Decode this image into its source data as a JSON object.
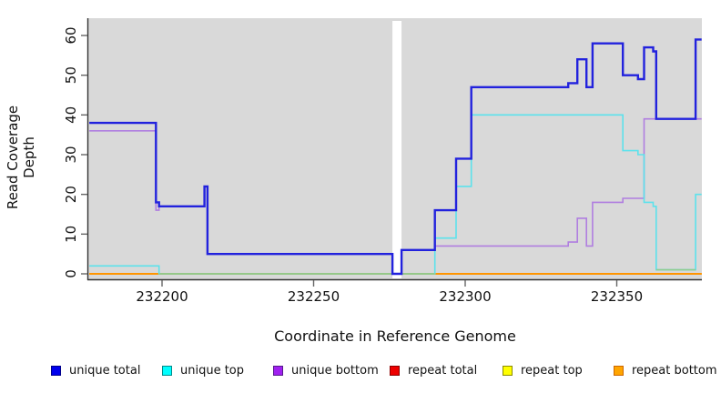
{
  "axes": {
    "x": {
      "label": "Coordinate in Reference Genome",
      "ticks": [
        232200,
        232250,
        232300,
        232350
      ],
      "range": [
        232176,
        232378
      ]
    },
    "y": {
      "label": "Read Coverage Depth",
      "ticks": [
        0,
        10,
        20,
        30,
        40,
        50,
        60
      ],
      "range": [
        0,
        62
      ]
    }
  },
  "chart_data": {
    "type": "line",
    "interpolation": "step-after",
    "title": "",
    "xlabel": "Coordinate in Reference Genome",
    "ylabel": "Read Coverage Depth",
    "xlim": [
      232176,
      232378
    ],
    "ylim": [
      0,
      62
    ],
    "grid": false,
    "plot_bg": "#d9d9d9",
    "gap_band": {
      "x0": 232276,
      "x1": 232279,
      "color": "#ffffff"
    },
    "series": [
      {
        "name": "repeat total",
        "color": "#ee0000",
        "width": 2,
        "points": [
          [
            232176,
            0
          ],
          [
            232378,
            0
          ]
        ]
      },
      {
        "name": "repeat top",
        "color": "#ffff00",
        "width": 2,
        "points": [
          [
            232176,
            0
          ],
          [
            232378,
            0
          ]
        ]
      },
      {
        "name": "repeat bottom",
        "color": "#ff9500",
        "width": 2,
        "points": [
          [
            232176,
            0
          ],
          [
            232378,
            0
          ]
        ]
      },
      {
        "name": "unique bottom",
        "color": "#b07ee0",
        "width": 1.6,
        "points": [
          [
            232176,
            36
          ],
          [
            232198,
            16
          ],
          [
            232199,
            17
          ],
          [
            232214,
            22
          ],
          [
            232215,
            5
          ],
          [
            232276,
            0
          ],
          [
            232279,
            6
          ],
          [
            232290,
            7
          ],
          [
            232334,
            8
          ],
          [
            232337,
            14
          ],
          [
            232340,
            7
          ],
          [
            232342,
            18
          ],
          [
            232352,
            19
          ],
          [
            232359,
            39
          ],
          [
            232378,
            39
          ]
        ]
      },
      {
        "name": "unique top",
        "color": "#5ce2ec",
        "width": 1.6,
        "points": [
          [
            232176,
            2
          ],
          [
            232199,
            0
          ],
          [
            232290,
            9
          ],
          [
            232297,
            22
          ],
          [
            232302,
            40
          ],
          [
            232352,
            31
          ],
          [
            232357,
            30
          ],
          [
            232359,
            18
          ],
          [
            232362,
            17
          ],
          [
            232363,
            1
          ],
          [
            232376,
            20
          ],
          [
            232378,
            20
          ]
        ]
      },
      {
        "name": "overlap",
        "color": "#8fcc8f",
        "width": 1.6,
        "segments": [
          [
            [
              232199,
              0
            ],
            [
              232290,
              0
            ]
          ],
          [
            [
              232363,
              1
            ],
            [
              232376,
              1
            ]
          ]
        ]
      },
      {
        "name": "unique total",
        "color": "#2222dd",
        "width": 2.4,
        "points": [
          [
            232176,
            38
          ],
          [
            232198,
            18
          ],
          [
            232199,
            17
          ],
          [
            232214,
            22
          ],
          [
            232215,
            5
          ],
          [
            232276,
            0
          ],
          [
            232279,
            6
          ],
          [
            232290,
            16
          ],
          [
            232297,
            29
          ],
          [
            232302,
            47
          ],
          [
            232334,
            48
          ],
          [
            232337,
            54
          ],
          [
            232340,
            47
          ],
          [
            232342,
            58
          ],
          [
            232352,
            50
          ],
          [
            232357,
            49
          ],
          [
            232359,
            57
          ],
          [
            232362,
            56
          ],
          [
            232363,
            39
          ],
          [
            232376,
            59
          ],
          [
            232378,
            59
          ]
        ]
      }
    ]
  },
  "legend": [
    {
      "label": "unique total",
      "fill": "#0000ee",
      "border": "#00008b"
    },
    {
      "label": "unique top",
      "fill": "#00ffff",
      "border": "#008b8b"
    },
    {
      "label": "unique bottom",
      "fill": "#a020f0",
      "border": "#551a8b"
    },
    {
      "label": "repeat total",
      "fill": "#ee0000",
      "border": "#8b0000"
    },
    {
      "label": "repeat top",
      "fill": "#ffff00",
      "border": "#8b8b00"
    },
    {
      "label": "repeat bottom",
      "fill": "#ffa500",
      "border": "#cc6600"
    }
  ],
  "colors": {
    "plot_background": "#d9d9d9",
    "axis_line": "#333333",
    "tick": "#666666",
    "text": "#111111"
  }
}
